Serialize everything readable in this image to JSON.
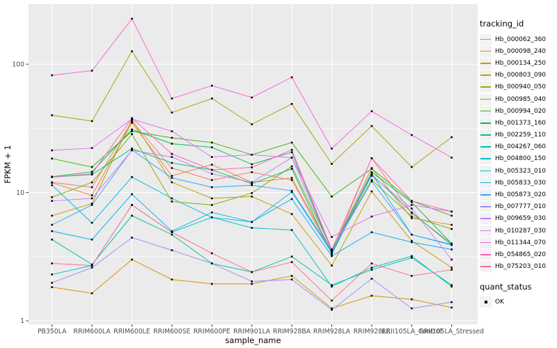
{
  "colors": {
    "panel_bg": "#ebebeb",
    "grid_major": "#ffffff",
    "grid_minor": "#ffffff",
    "axis_text": "#4d4d4d",
    "axis_title": "#000000",
    "tick_mark": "#333333",
    "point": "#000000",
    "legend_key_bg": "#f2f2f2"
  },
  "legend": {
    "tracking_id_title": "tracking_id",
    "quant_status_title": "quant_status",
    "quant_status_items": [
      "OK"
    ]
  },
  "chart_data": {
    "type": "line",
    "title": "",
    "xlabel": "sample_name",
    "ylabel": "FPKM + 1",
    "y_scale": "log10",
    "ylim": [
      1,
      290
    ],
    "y_major_ticks": [
      1,
      10,
      100
    ],
    "y_tick_labels": [
      "1",
      "10",
      "100"
    ],
    "y_minor_ticks": [
      3.1623,
      31.623
    ],
    "grid": true,
    "legend_position": "right",
    "point_marker": "black-square",
    "categories": [
      "PB350LA",
      "RRIM600LA",
      "RRIM600LE",
      "RRIM600SE",
      "RRIM600PE",
      "RRIM901LA",
      "RRIM928BA",
      "RRIM928LA",
      "RRIM928LE",
      "RRII105LA_Control",
      "RRII105LA_Stressed"
    ],
    "series": [
      {
        "name": "Hb_000062_360",
        "color": "#F8766D",
        "values": [
          12.0,
          11.0,
          36,
          15.5,
          12.5,
          14.4,
          12.5,
          3.4,
          18.5,
          6.9,
          4.0
        ]
      },
      {
        "name": "Hb_000098_240",
        "color": "#EA8331",
        "values": [
          11.9,
          9.5,
          35,
          13.5,
          16.5,
          12.0,
          13.0,
          3.5,
          15.5,
          6.3,
          5.6
        ]
      },
      {
        "name": "Hb_000134_250",
        "color": "#D89000",
        "values": [
          1.83,
          1.64,
          3.0,
          2.1,
          1.94,
          1.94,
          2.24,
          1.25,
          1.57,
          1.47,
          1.27
        ]
      },
      {
        "name": "Hb_000803_090",
        "color": "#C09B00",
        "values": [
          6.6,
          8.2,
          37,
          12.0,
          9.0,
          9.3,
          6.8,
          2.7,
          10.2,
          4.2,
          2.6
        ]
      },
      {
        "name": "Hb_000940_050",
        "color": "#A3A500",
        "values": [
          40,
          36,
          126,
          42,
          54,
          34,
          49,
          16.7,
          33,
          15.8,
          27
        ]
      },
      {
        "name": "Hb_000985_040",
        "color": "#7CAE00",
        "values": [
          9.2,
          12.0,
          28.5,
          8.5,
          8.0,
          9.9,
          16.0,
          3.6,
          12.5,
          6.5,
          5.2
        ]
      },
      {
        "name": "Hb_000994_020",
        "color": "#39B600",
        "values": [
          18.4,
          15.8,
          30,
          26.7,
          24.5,
          19.7,
          24.5,
          9.3,
          15.3,
          8.6,
          6.6
        ]
      },
      {
        "name": "Hb_001373_160",
        "color": "#00BB4E",
        "values": [
          13.3,
          14.5,
          31,
          24,
          22.5,
          16.6,
          20.6,
          3.5,
          14.4,
          8.4,
          4.0
        ]
      },
      {
        "name": "Hb_002259_110",
        "color": "#00BF7D",
        "values": [
          13.2,
          13.8,
          22,
          17,
          15.0,
          11.7,
          15.3,
          3.3,
          13.8,
          7.0,
          3.9
        ]
      },
      {
        "name": "Hb_004267_060",
        "color": "#00C1A3",
        "values": [
          4.3,
          2.75,
          6.6,
          4.7,
          2.8,
          2.4,
          3.17,
          1.9,
          2.5,
          3.1,
          1.9
        ]
      },
      {
        "name": "Hb_004800_150",
        "color": "#00BFC4",
        "values": [
          2.3,
          2.7,
          8.0,
          4.9,
          6.4,
          5.3,
          5.1,
          1.85,
          2.6,
          3.2,
          1.85
        ]
      },
      {
        "name": "Hb_005323_010",
        "color": "#00BAE0",
        "values": [
          11.4,
          5.8,
          13.2,
          9.0,
          6.4,
          5.9,
          10.1,
          3.4,
          14.0,
          4.7,
          3.9
        ]
      },
      {
        "name": "Hb_005833_030",
        "color": "#00B0F6",
        "values": [
          5.0,
          4.3,
          9.7,
          5.0,
          7.0,
          5.9,
          8.9,
          3.2,
          4.9,
          4.1,
          3.6
        ]
      },
      {
        "name": "Hb_005873_020",
        "color": "#35A2FF",
        "values": [
          5.6,
          8.0,
          21.5,
          13.0,
          11.0,
          11.4,
          10.3,
          3.5,
          12.2,
          4.7,
          3.94
        ]
      },
      {
        "name": "Hb_007777_010",
        "color": "#9590FF",
        "values": [
          1.98,
          2.6,
          4.45,
          3.55,
          2.8,
          2.03,
          2.1,
          1.22,
          2.13,
          1.25,
          1.4
        ]
      },
      {
        "name": "Hb_009659_030",
        "color": "#C77CFF",
        "values": [
          8.6,
          9.0,
          21.3,
          18.9,
          14.0,
          12.0,
          18.7,
          3.5,
          13.5,
          7.5,
          3.0
        ]
      },
      {
        "name": "Hb_010287_030",
        "color": "#E76BF3",
        "values": [
          21.3,
          22.2,
          37.4,
          30,
          18.9,
          19.7,
          18.7,
          4.5,
          6.5,
          8.0,
          7.1
        ]
      },
      {
        "name": "Hb_011344_070",
        "color": "#FA62DB",
        "values": [
          82,
          89,
          226,
          54,
          68,
          55,
          79,
          22,
          43,
          28,
          18.7
        ]
      },
      {
        "name": "Hb_054865_020",
        "color": "#FF62BC",
        "values": [
          13.2,
          14.0,
          38,
          20,
          15.0,
          15.7,
          21.5,
          3.6,
          18.5,
          8.6,
          7.1
        ]
      },
      {
        "name": "Hb_075203_010",
        "color": "#FF6A98",
        "values": [
          2.8,
          2.7,
          8.0,
          4.9,
          3.36,
          2.4,
          2.87,
          1.44,
          2.8,
          2.24,
          2.5
        ]
      }
    ]
  }
}
